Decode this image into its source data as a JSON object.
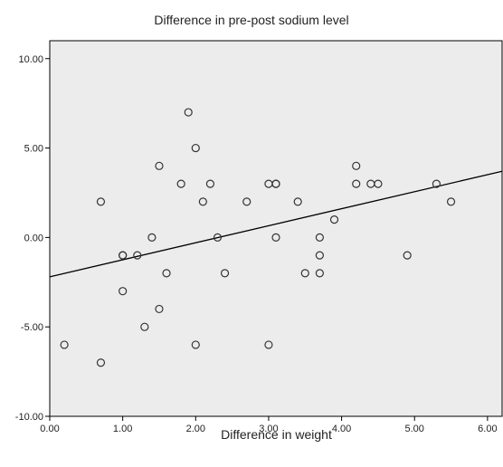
{
  "chart_data": {
    "type": "scatter",
    "title": "Difference in pre-post sodium level",
    "xlabel": "Difference in weight",
    "ylabel": "",
    "xlim": [
      0,
      6.2
    ],
    "ylim": [
      -10,
      11
    ],
    "xticks": [
      "0.00",
      "1.00",
      "2.00",
      "3.00",
      "4.00",
      "5.00",
      "6.00"
    ],
    "yticks": [
      "-10.00",
      "-5.00",
      "0.00",
      "5.00",
      "10.00"
    ],
    "grid": false,
    "plot_background": "#ececec",
    "point_color": "#333333",
    "fit_line": {
      "x": [
        0,
        6.2
      ],
      "y": [
        -2.2,
        3.7
      ]
    },
    "points": [
      [
        0.2,
        -6
      ],
      [
        0.7,
        2
      ],
      [
        0.7,
        -7
      ],
      [
        1.0,
        -1
      ],
      [
        1.0,
        -1
      ],
      [
        1.0,
        -3
      ],
      [
        1.2,
        -1
      ],
      [
        1.3,
        -5
      ],
      [
        1.4,
        0
      ],
      [
        1.5,
        4
      ],
      [
        1.5,
        -4
      ],
      [
        1.6,
        -2
      ],
      [
        1.8,
        3
      ],
      [
        1.9,
        7
      ],
      [
        2.0,
        5
      ],
      [
        2.0,
        -6
      ],
      [
        2.1,
        2
      ],
      [
        2.2,
        3
      ],
      [
        2.3,
        0
      ],
      [
        2.4,
        -2
      ],
      [
        2.7,
        2
      ],
      [
        3.0,
        3
      ],
      [
        3.0,
        -6
      ],
      [
        3.1,
        3
      ],
      [
        3.1,
        3
      ],
      [
        3.1,
        0
      ],
      [
        3.4,
        2
      ],
      [
        3.5,
        -2
      ],
      [
        3.7,
        0
      ],
      [
        3.7,
        -1
      ],
      [
        3.7,
        -2
      ],
      [
        3.9,
        1
      ],
      [
        4.2,
        4
      ],
      [
        4.2,
        3
      ],
      [
        4.4,
        3
      ],
      [
        4.5,
        3
      ],
      [
        4.9,
        -1
      ],
      [
        5.3,
        3
      ],
      [
        5.5,
        2
      ]
    ]
  }
}
